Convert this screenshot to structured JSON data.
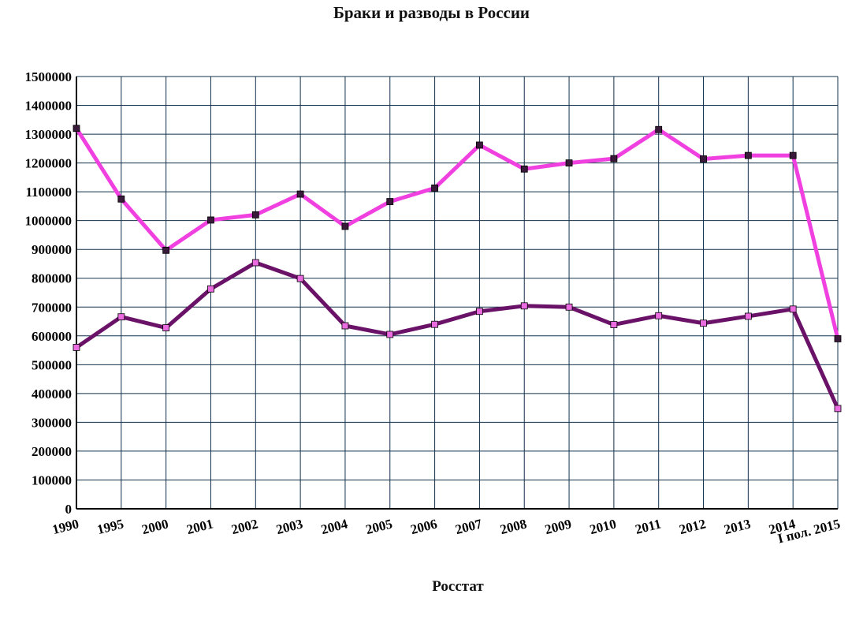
{
  "chart_data": {
    "type": "line",
    "title": "Браки и разводы в России",
    "source": "Росстат",
    "xlabel": "",
    "ylabel": "",
    "categories": [
      "1990",
      "1995",
      "2000",
      "2001",
      "2002",
      "2003",
      "2004",
      "2005",
      "2006",
      "2007",
      "2008",
      "2009",
      "2010",
      "2011",
      "2012",
      "2013",
      "2014",
      "I пол. 2015"
    ],
    "y_ticks": [
      "0",
      "100000",
      "200000",
      "300000",
      "400000",
      "500000",
      "600000",
      "700000",
      "800000",
      "900000",
      "1000000",
      "1100000",
      "1200000",
      "1300000",
      "1400000",
      "1500000"
    ],
    "ylim": [
      0,
      1500000
    ],
    "grid": true,
    "legend": "none",
    "series": [
      {
        "values": [
          1320000,
          1075000,
          897000,
          1002000,
          1020000,
          1092000,
          980000,
          1066000,
          1113000,
          1262000,
          1179000,
          1200000,
          1215000,
          1316000,
          1214000,
          1226000,
          1226000,
          590000
        ],
        "color": "#f041e0",
        "marker_color": "#3a1a3a"
      },
      {
        "values": [
          560000,
          666000,
          628000,
          763000,
          854000,
          799000,
          635000,
          605000,
          640000,
          685000,
          704000,
          700000,
          639000,
          670000,
          644000,
          668000,
          693000,
          348000
        ],
        "color": "#6a1268",
        "marker_color": "#ea6ce0"
      }
    ]
  }
}
